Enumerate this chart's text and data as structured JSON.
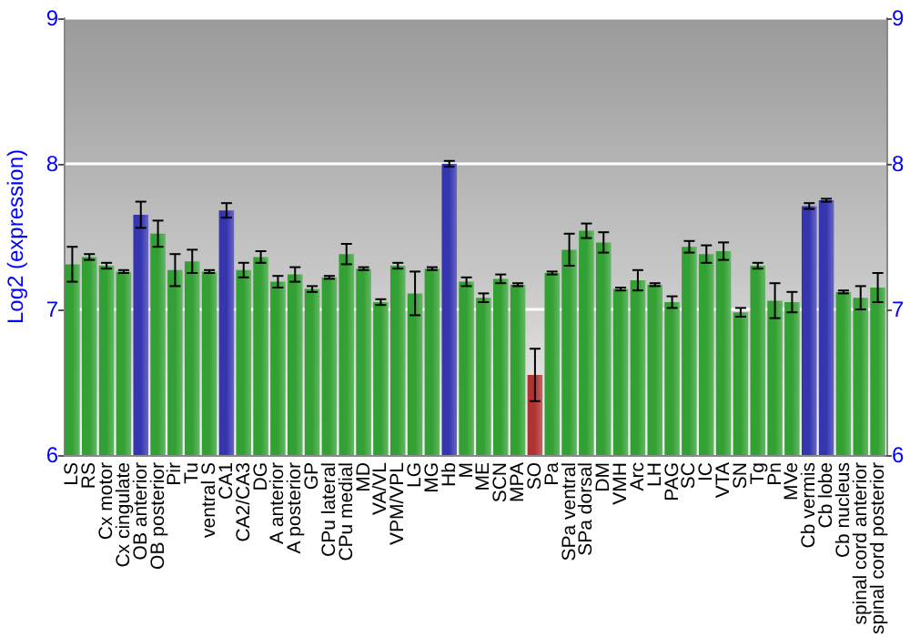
{
  "chart_data": {
    "type": "bar",
    "ylabel": "Log2 (expression)",
    "categories": [
      "LS",
      "RS",
      "Cx motor",
      "Cx cingulate",
      "OB anterior",
      "OB posterior",
      "Pir",
      "Tu",
      "ventral S",
      "CA1",
      "CA2/CA3",
      "DG",
      "A anterior",
      "A posterior",
      "GP",
      "CPu lateral",
      "CPu medial",
      "MD",
      "VA/VL",
      "VPM/VPL",
      "LG",
      "MG",
      "Hb",
      "M",
      "ME",
      "SCN",
      "MPA",
      "SO",
      "Pa",
      "SPa ventral",
      "SPa dorsal",
      "DM",
      "VMH",
      "Arc",
      "LH",
      "PAG",
      "SC",
      "IC",
      "VTA",
      "SN",
      "Tg",
      "Pn",
      "MVe",
      "Cb vermis",
      "Cb lobe",
      "Cb nucleus",
      "spinal cord anterior",
      "spinal cord posterior"
    ],
    "values": [
      7.31,
      7.36,
      7.3,
      7.26,
      7.65,
      7.52,
      7.27,
      7.33,
      7.26,
      7.68,
      7.27,
      7.36,
      7.19,
      7.24,
      7.14,
      7.22,
      7.38,
      7.28,
      7.05,
      7.3,
      7.11,
      7.28,
      8.0,
      7.19,
      7.08,
      7.21,
      7.17,
      6.55,
      7.25,
      7.41,
      7.54,
      7.46,
      7.14,
      7.2,
      7.17,
      7.05,
      7.43,
      7.38,
      7.4,
      6.98,
      7.3,
      7.06,
      7.05,
      7.71,
      7.75,
      7.12,
      7.08,
      7.15
    ],
    "errors": [
      0.12,
      0.02,
      0.02,
      0.01,
      0.09,
      0.09,
      0.11,
      0.08,
      0.01,
      0.05,
      0.05,
      0.04,
      0.04,
      0.05,
      0.02,
      0.01,
      0.07,
      0.01,
      0.02,
      0.02,
      0.15,
      0.01,
      0.02,
      0.03,
      0.03,
      0.03,
      0.01,
      0.18,
      0.01,
      0.11,
      0.05,
      0.07,
      0.01,
      0.07,
      0.01,
      0.04,
      0.04,
      0.06,
      0.06,
      0.03,
      0.02,
      0.12,
      0.07,
      0.02,
      0.01,
      0.01,
      0.08,
      0.1
    ],
    "colors": [
      "#33a033",
      "#33a033",
      "#33a033",
      "#33a033",
      "#3535b0",
      "#33a033",
      "#33a033",
      "#33a033",
      "#33a033",
      "#3535b0",
      "#33a033",
      "#33a033",
      "#33a033",
      "#33a033",
      "#33a033",
      "#33a033",
      "#33a033",
      "#33a033",
      "#33a033",
      "#33a033",
      "#33a033",
      "#33a033",
      "#3535b0",
      "#33a033",
      "#33a033",
      "#33a033",
      "#33a033",
      "#b03333",
      "#33a033",
      "#33a033",
      "#33a033",
      "#33a033",
      "#33a033",
      "#33a033",
      "#33a033",
      "#33a033",
      "#33a033",
      "#33a033",
      "#33a033",
      "#33a033",
      "#33a033",
      "#33a033",
      "#33a033",
      "#3535b0",
      "#3535b0",
      "#33a033",
      "#33a033",
      "#33a033"
    ],
    "ylim": [
      6,
      9
    ],
    "yticks": [
      6,
      7,
      8,
      9
    ],
    "y2lim": [
      6,
      9
    ],
    "y2ticks": [
      6,
      7,
      8,
      9
    ],
    "grid": "y"
  }
}
